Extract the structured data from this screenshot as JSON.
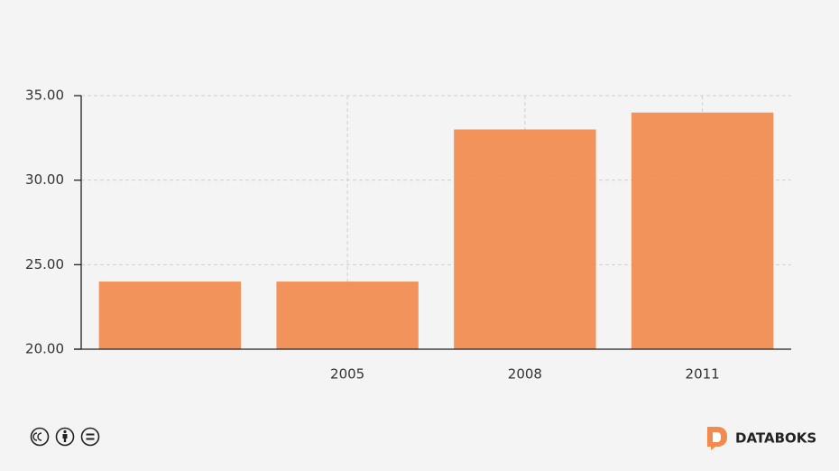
{
  "chart_data": {
    "type": "bar",
    "categories": [
      null,
      "2005",
      "2008",
      "2011"
    ],
    "values": [
      24,
      24,
      33,
      34
    ],
    "color": "#f28a4e",
    "ylim": [
      20,
      35
    ],
    "yticks": [
      {
        "value": 20,
        "label": "20.00"
      },
      {
        "value": 25,
        "label": "25.00"
      },
      {
        "value": 30,
        "label": "30.00"
      },
      {
        "value": 35,
        "label": "35.00"
      }
    ],
    "grid": true
  },
  "footer": {
    "brand": "DATABOKS"
  }
}
